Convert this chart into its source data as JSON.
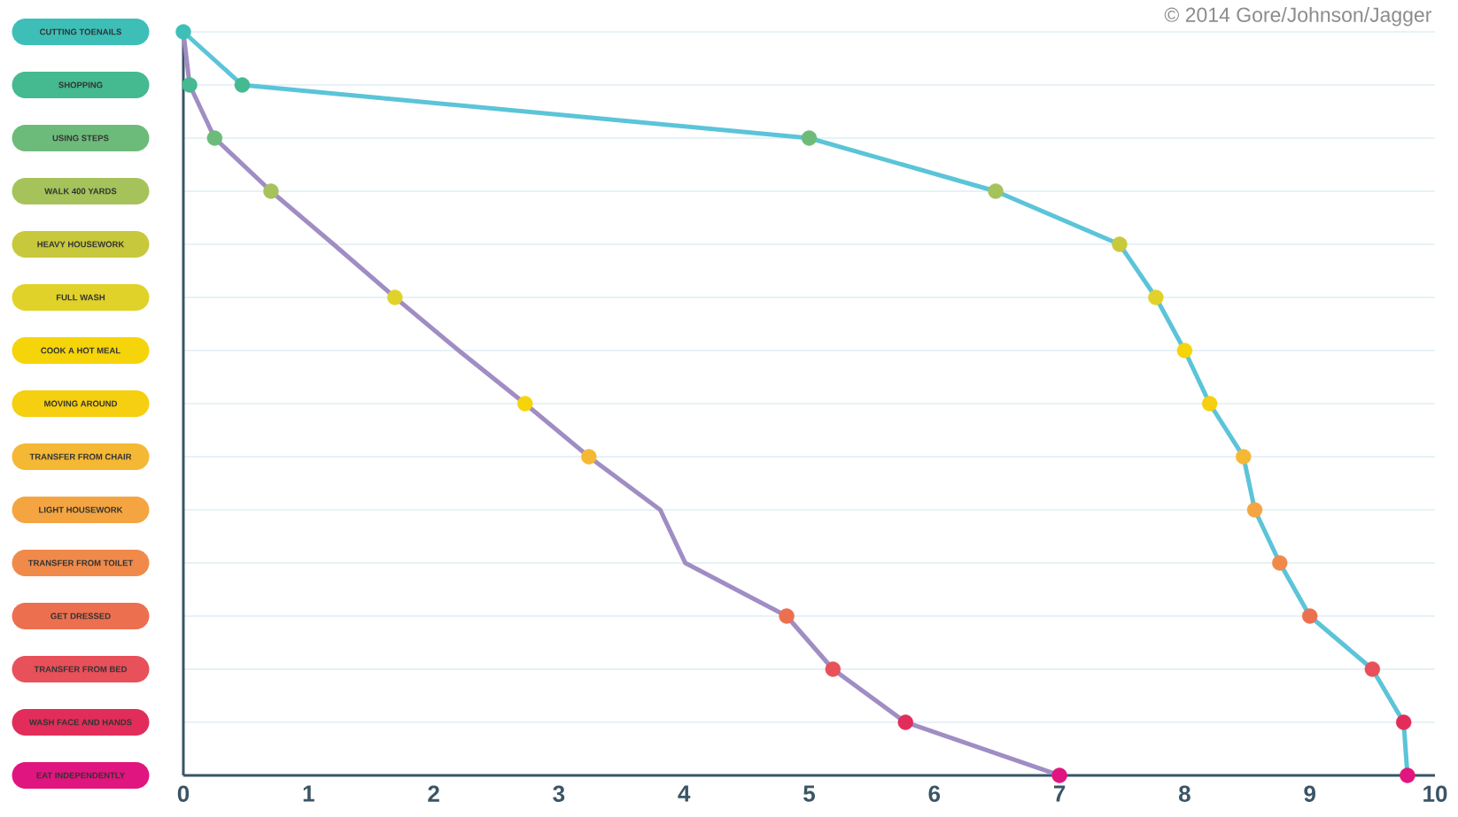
{
  "chart_data": {
    "type": "line",
    "orientation": "horizontal",
    "categories": [
      "CUTTING TOENAILS",
      "SHOPPING",
      "USING STEPS",
      "WALK 400 YARDS",
      "HEAVY HOUSEWORK",
      "FULL WASH",
      "COOK A HOT MEAL",
      "MOVING AROUND",
      "TRANSFER FROM CHAIR",
      "LIGHT HOUSEWORK",
      "TRANSFER FROM TOILET",
      "GET DRESSED",
      "TRANSFER FROM BED",
      "WASH FACE AND HANDS",
      "EAT INDEPENDENTLY"
    ],
    "series": [
      {
        "color": "#5bc4d9",
        "values": [
          0,
          0.47,
          5.0,
          6.49,
          7.48,
          7.77,
          8.0,
          8.2,
          8.47,
          8.56,
          8.76,
          9.0,
          9.5,
          9.75,
          9.78
        ],
        "colors": [
          "#3dbfb8",
          "#45b98f",
          "#6dbb7a",
          "#a5c35a",
          "#c8c83c",
          "#e1d22a",
          "#f5d40a",
          "#f5cf10",
          "#f5b835",
          "#f4a541",
          "#ef8a4b",
          "#ec6f4f",
          "#e8505a",
          "#e22d5a",
          "#e0157f"
        ]
      },
      {
        "color": "#a08dc4",
        "values": [
          0,
          0.05,
          0.25,
          0.7,
          1.2,
          1.69,
          2.2,
          2.73,
          3.24,
          3.81,
          4.01,
          4.82,
          5.19,
          5.77,
          7.0
        ],
        "colors": [
          null,
          "#45b98f",
          "#6dbb7a",
          "#a5c35a",
          null,
          "#e1d22a",
          null,
          "#f5d40a",
          "#f5b835",
          null,
          null,
          "#ec6f4f",
          "#e8505a",
          "#e22d5a",
          "#e0157f"
        ]
      }
    ],
    "xlim": [
      0,
      10
    ],
    "xticks": [
      0,
      1,
      2,
      3,
      4,
      5,
      6,
      7,
      8,
      9,
      10
    ],
    "grid": "y",
    "marker": "circle",
    "line_style": "solid",
    "annotations": [
      "© 2014 Gore/Johnson/Jagger"
    ]
  }
}
